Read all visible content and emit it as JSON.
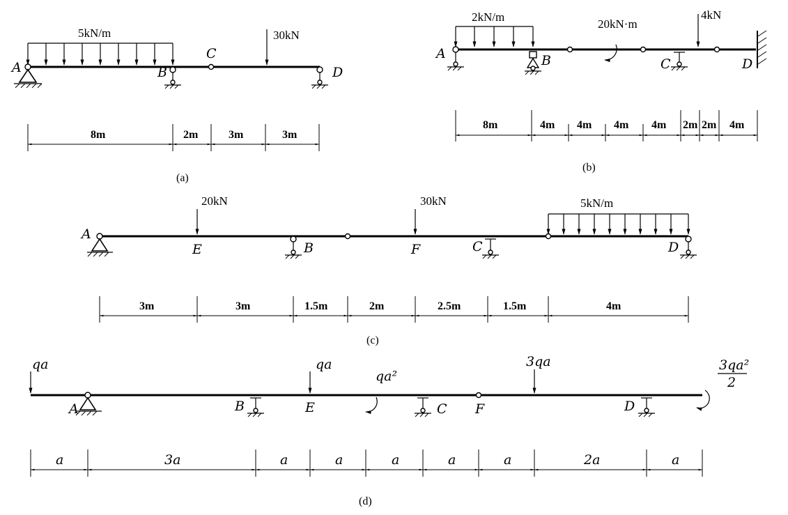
{
  "a": {
    "caption": "(a)",
    "load_udl": "5kN/m",
    "load_point": "30kN",
    "points": {
      "A": "A",
      "B": "B",
      "C": "C",
      "D": "D"
    },
    "dims": [
      "8m",
      "2m",
      "3m",
      "3m"
    ]
  },
  "b": {
    "caption": "(b)",
    "load_udl": "2kN/m",
    "moment": "20kN·m",
    "load_point": "4kN",
    "points": {
      "A": "A",
      "B": "B",
      "C": "C",
      "D": "D"
    },
    "dims": [
      "8m",
      "4m",
      "4m",
      "4m",
      "4m",
      "2m",
      "2m",
      "4m"
    ]
  },
  "c": {
    "caption": "(c)",
    "load_20": "20kN",
    "load_30": "30kN",
    "load_udl": "5kN/m",
    "points": {
      "A": "A",
      "E": "E",
      "B": "B",
      "F": "F",
      "C": "C",
      "D": "D"
    },
    "dims": [
      "3m",
      "3m",
      "1.5m",
      "2m",
      "2.5m",
      "1.5m",
      "4m"
    ]
  },
  "d": {
    "caption": "(d)",
    "load_left": "qa",
    "load_e": "qa",
    "moment_mid": "qa²",
    "load_3qa": "3qa",
    "moment_end_num": "3qa²",
    "moment_end_den": "2",
    "points": {
      "A": "A",
      "B": "B",
      "E": "E",
      "C": "C",
      "F": "F",
      "D": "D"
    },
    "dims": [
      "a",
      "3a",
      "a",
      "a",
      "a",
      "a",
      "a",
      "2a",
      "a"
    ]
  }
}
